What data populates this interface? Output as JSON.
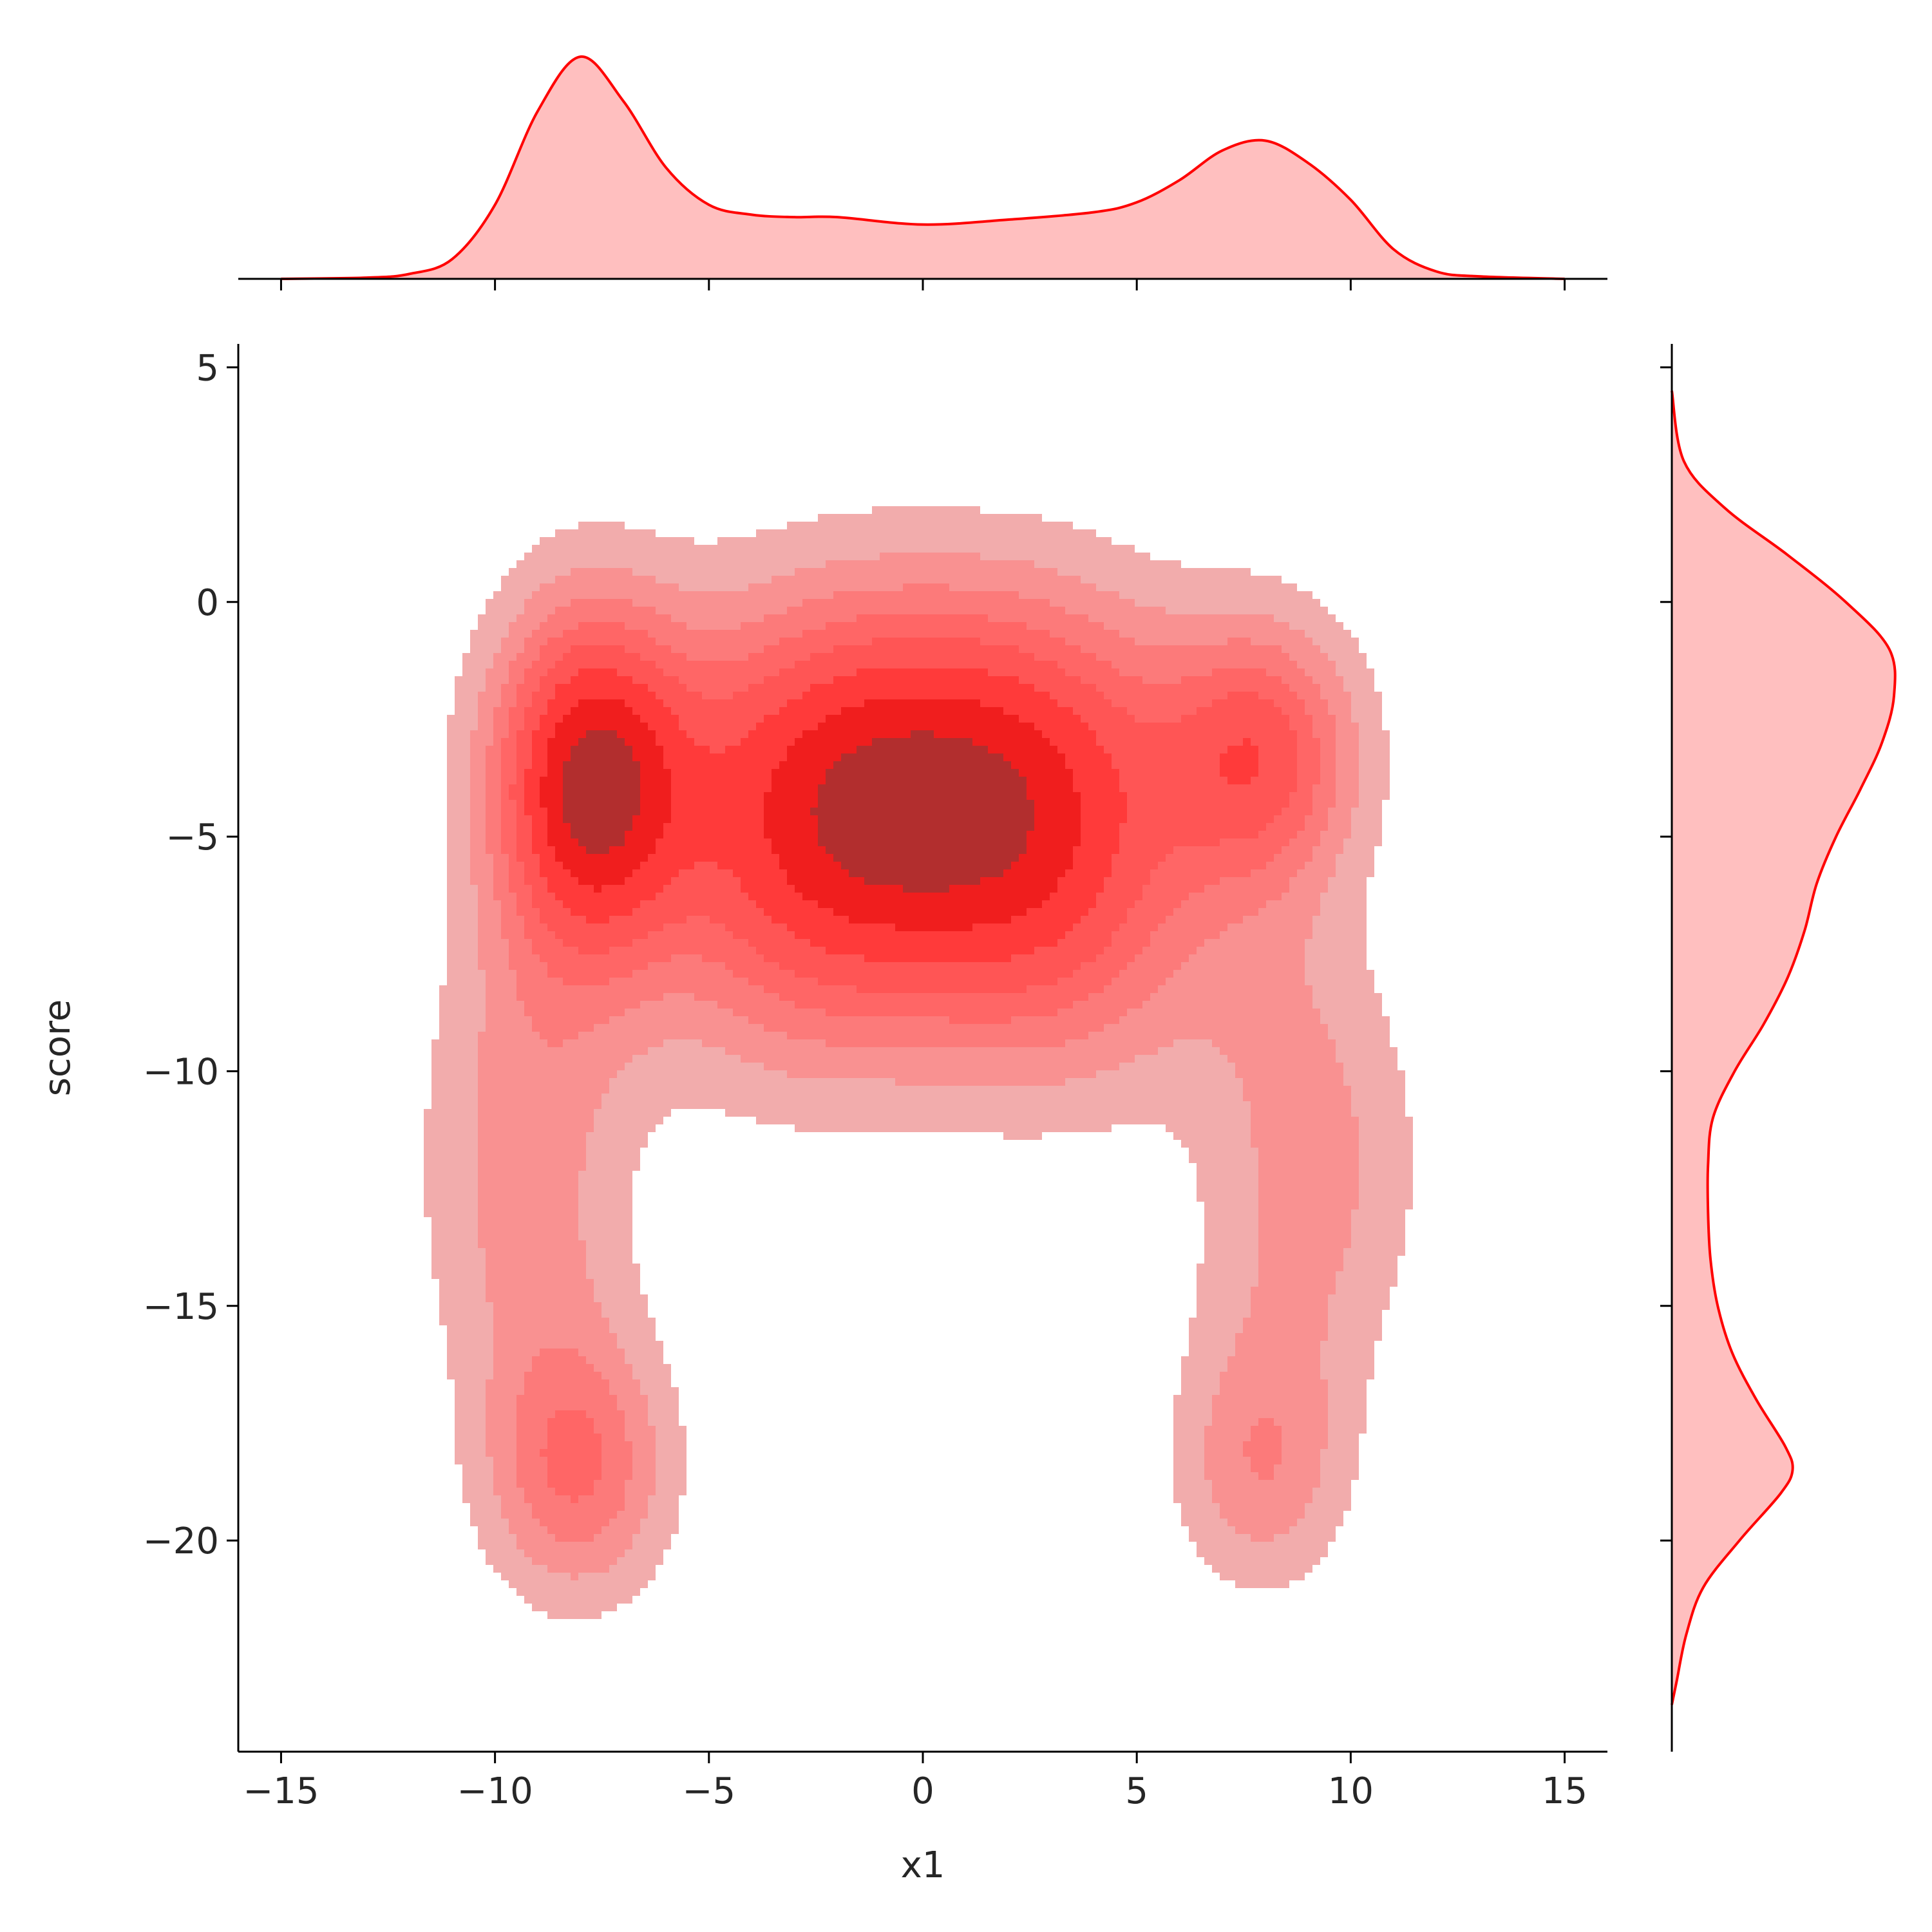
{
  "chart_data": {
    "type": "kde_joint",
    "xlabel": "x1",
    "ylabel": "score",
    "xlim": [
      -16,
      16
    ],
    "ylim": [
      -24.5,
      5.5
    ],
    "x_ticks": [
      -15,
      -10,
      -5,
      0,
      5,
      10,
      15
    ],
    "x_tick_labels": [
      "−15",
      "−10",
      "−5",
      "0",
      "5",
      "10",
      "15"
    ],
    "y_ticks": [
      5,
      0,
      -5,
      -10,
      -15,
      -20
    ],
    "y_tick_labels": [
      "5",
      "0",
      "−5",
      "−10",
      "−15",
      "−20"
    ],
    "color": "#ff0000",
    "fill_color": "#ffbfbf",
    "contour_colors": [
      "#f2acac",
      "#f99191",
      "#fc7a7a",
      "#ff6666",
      "#ff5555",
      "#ff3a3a",
      "#f01e1e",
      "#b22e2e"
    ],
    "modes": [
      {
        "x": -7.8,
        "y": -3.9,
        "weight": 1.0
      },
      {
        "x": 7.9,
        "y": -3.3,
        "weight": 0.6
      },
      {
        "x": -8.1,
        "y": -18.5,
        "weight": 0.45
      },
      {
        "x": 7.9,
        "y": -18.5,
        "weight": 0.3
      }
    ],
    "marginal_x": {
      "x": [
        -15,
        -13,
        -12,
        -11,
        -10,
        -9,
        -8,
        -7,
        -6,
        -5,
        -4,
        -3,
        -2,
        0,
        2,
        4,
        5,
        6,
        7,
        8,
        9,
        10,
        11,
        12,
        13,
        15
      ],
      "density": [
        0.0,
        0.005,
        0.02,
        0.08,
        0.3,
        0.68,
        0.9,
        0.72,
        0.45,
        0.3,
        0.26,
        0.25,
        0.25,
        0.22,
        0.24,
        0.27,
        0.31,
        0.4,
        0.52,
        0.56,
        0.47,
        0.32,
        0.12,
        0.03,
        0.01,
        0.0
      ]
    },
    "marginal_y": {
      "y": [
        4.5,
        3,
        2,
        1,
        0,
        -1,
        -2,
        -3,
        -4,
        -5,
        -6,
        -7,
        -8,
        -9,
        -10,
        -11,
        -12,
        -13,
        -14,
        -15,
        -16,
        -17,
        -18,
        -18.5,
        -19,
        -20,
        -21,
        -22,
        -23,
        -23.5
      ],
      "density": [
        0.0,
        0.05,
        0.22,
        0.48,
        0.72,
        0.9,
        0.92,
        0.87,
        0.78,
        0.68,
        0.6,
        0.55,
        0.48,
        0.38,
        0.26,
        0.17,
        0.15,
        0.15,
        0.16,
        0.19,
        0.25,
        0.35,
        0.47,
        0.5,
        0.45,
        0.28,
        0.13,
        0.06,
        0.02,
        0.0
      ]
    }
  }
}
